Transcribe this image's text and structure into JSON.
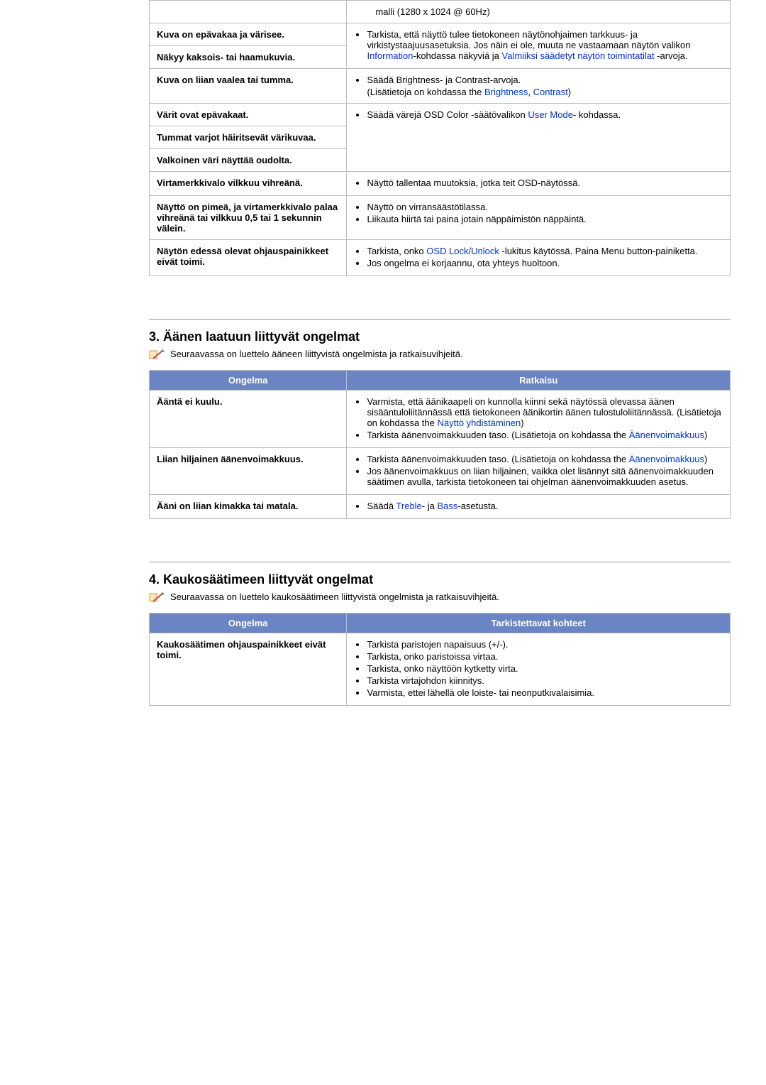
{
  "colors": {
    "header_bg": "#6a84c4",
    "header_fg": "#ffffff",
    "border": "#bbbbbb",
    "link": "#0033cc",
    "text": "#000000"
  },
  "table1": {
    "rows": [
      {
        "problem": "",
        "solution_prefix": "malli (1280 x 1024 @ 60Hz)",
        "rowspan_solution": 1,
        "plain": true
      },
      {
        "problem": "Kuva on epävakaa ja värisee.",
        "group_start": true,
        "group_rowspan": 2,
        "solution_html": [
          [
            "Tarkista, että näyttö tulee tietokoneen näytönohjaimen tarkkuus- ja virkistystaajuusasetuksia. Jos näin ei ole, muuta ne vastaamaan näytön valikon ",
            {
              "link": "Information"
            },
            "-kohdassa näkyviä ja ",
            {
              "link": "Valmiiksi säädetyt näytön toimintatilat"
            },
            " -arvoja."
          ]
        ]
      },
      {
        "problem": "Näkyy kaksois- tai haamukuvia.",
        "group_member": true
      },
      {
        "problem": "Kuva on liian vaalea tai tumma.",
        "solution_html": [
          [
            "Säädä Brightness- ja Contrast-arvoja."
          ],
          [
            "(Lisätietoja on kohdassa the ",
            {
              "link": "Brightness"
            },
            ", ",
            {
              "link": "Contrast"
            },
            ")"
          ]
        ],
        "li_then_plain": true
      },
      {
        "problem": "Värit ovat epävakaat.",
        "group_start": true,
        "group_rowspan": 3,
        "solution_html": [
          [
            "Säädä värejä OSD Color -säätövalikon ",
            {
              "link": "User Mode"
            },
            "- kohdassa."
          ]
        ]
      },
      {
        "problem": "Tummat varjot häiritsevät värikuvaa.",
        "group_member": true
      },
      {
        "problem": "Valkoinen väri näyttää oudolta.",
        "group_member": true
      },
      {
        "problem": "Virtamerkkivalo vilkkuu vihreänä.",
        "solution_html": [
          [
            "Näyttö tallentaa muutoksia, jotka teit OSD-näytössä."
          ]
        ]
      },
      {
        "problem": "Näyttö on pimeä, ja virtamerkkivalo palaa vihreänä tai vilkkuu 0,5 tai 1 sekunnin välein.",
        "solution_html": [
          [
            "Näyttö on virransäästötilassa."
          ],
          [
            "Liikauta hiirtä tai paina jotain näppäimistön näppäintä."
          ]
        ]
      },
      {
        "problem": "Näytön edessä olevat ohjauspainikkeet eivät toimi.",
        "solution_html": [
          [
            "Tarkista, onko ",
            {
              "link": "OSD Lock/Unlock"
            },
            " -lukitus käytössä. Paina Menu button-painiketta."
          ],
          [
            "Jos ongelma ei korjaannu, ota yhteys huoltoon."
          ]
        ]
      }
    ]
  },
  "section3": {
    "title": "3. Äänen laatuun liittyvät ongelmat",
    "intro": "Seuraavassa on luettelo ääneen liittyvistä ongelmista ja ratkaisuvihjeitä.",
    "headers": {
      "problem": "Ongelma",
      "solution": "Ratkaisu"
    },
    "rows": [
      {
        "problem": "Ääntä ei kuulu.",
        "solution_html": [
          [
            "Varmista, että äänikaapeli on kunnolla kiinni sekä näytössä olevassa äänen sisääntuloliitännässä että tietokoneen äänikortin äänen tulostuloliitännässä. (Lisätietoja on kohdassa the ",
            {
              "link": "Näyttö yhdistäminen"
            },
            ")"
          ],
          [
            "Tarkista äänenvoimakkuuden taso. (Lisätietoja on kohdassa the ",
            {
              "link": "Äänenvoimakkuus"
            },
            ")"
          ]
        ]
      },
      {
        "problem": "Liian hiljainen äänenvoimakkuus.",
        "solution_html": [
          [
            "Tarkista äänenvoimakkuuden taso. (Lisätietoja on kohdassa the ",
            {
              "link": "Äänenvoimakkuus"
            },
            ")"
          ],
          [
            "Jos äänenvoimakkuus on liian hiljainen, vaikka olet lisännyt sitä äänenvoimakkuuden säätimen avulla, tarkista tietokoneen tai ohjelman äänenvoimakkuuden asetus."
          ]
        ]
      },
      {
        "problem": "Ääni on liian kimakka tai matala.",
        "solution_html": [
          [
            "Säädä ",
            {
              "link": "Treble"
            },
            "- ja ",
            {
              "link": "Bass"
            },
            "-asetusta."
          ]
        ]
      }
    ]
  },
  "section4": {
    "title": "4. Kaukosäätimeen liittyvät ongelmat",
    "intro": "Seuraavassa on luettelo kaukosäätimeen liittyvistä ongelmista ja ratkaisuvihjeitä.",
    "headers": {
      "problem": "Ongelma",
      "solution": "Tarkistettavat kohteet"
    },
    "rows": [
      {
        "problem": "Kaukosäätimen ohjauspainikkeet eivät toimi.",
        "solution_html": [
          [
            "Tarkista paristojen napaisuus (+/-)."
          ],
          [
            "Tarkista, onko paristoissa virtaa."
          ],
          [
            "Tarkista, onko näyttöön kytketty virta."
          ],
          [
            "Tarkista virtajohdon kiinnitys."
          ],
          [
            "Varmista, ettei lähellä ole loiste- tai neonputkivalaisimia."
          ]
        ]
      }
    ]
  }
}
